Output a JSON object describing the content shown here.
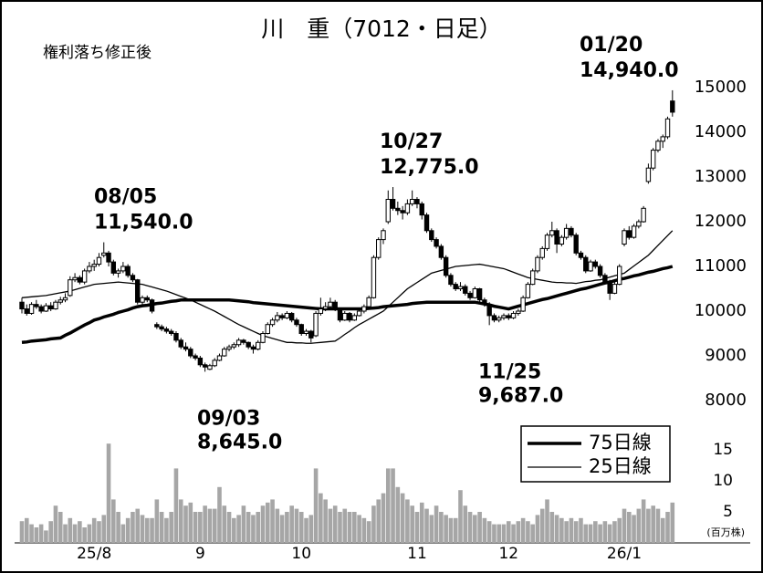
{
  "chart_data": {
    "type": "candlestick",
    "title": "川　重（7012・日足）",
    "subtitle": "権利落ち修正後",
    "categories": [
      null,
      null,
      null,
      null,
      null,
      null,
      null,
      null,
      null,
      null,
      null,
      null,
      null,
      null,
      null,
      "25/8",
      null,
      null,
      null,
      null,
      null,
      null,
      null,
      null,
      null,
      null,
      null,
      null,
      null,
      null,
      null,
      null,
      null,
      null,
      null,
      null,
      null,
      "9",
      null,
      null,
      null,
      null,
      null,
      null,
      null,
      null,
      null,
      null,
      null,
      null,
      null,
      null,
      null,
      null,
      null,
      null,
      null,
      null,
      "10",
      null,
      null,
      null,
      null,
      null,
      null,
      null,
      null,
      null,
      null,
      null,
      null,
      null,
      null,
      null,
      null,
      null,
      null,
      null,
      null,
      null,
      null,
      null,
      "11",
      null,
      null,
      null,
      null,
      null,
      null,
      null,
      null,
      null,
      null,
      null,
      null,
      null,
      null,
      null,
      null,
      null,
      null,
      "12",
      null,
      null,
      null,
      null,
      null,
      null,
      null,
      null,
      null,
      null,
      null,
      null,
      null,
      null,
      null,
      null,
      null,
      null,
      null,
      null,
      null,
      null,
      null,
      "26/1",
      null,
      null,
      null,
      null,
      null,
      null,
      null,
      null,
      null,
      null
    ],
    "candles": [
      [
        10200,
        10300,
        9950,
        10050
      ],
      [
        10050,
        10150,
        9900,
        9950
      ],
      [
        9950,
        10200,
        9920,
        10150
      ],
      [
        10150,
        10250,
        10050,
        10100
      ],
      [
        10100,
        10150,
        9950,
        10000
      ],
      [
        10000,
        10180,
        9980,
        10120
      ],
      [
        10120,
        10200,
        10000,
        10050
      ],
      [
        10050,
        10250,
        10030,
        10200
      ],
      [
        10200,
        10320,
        10150,
        10250
      ],
      [
        10250,
        10400,
        10200,
        10300
      ],
      [
        10350,
        10780,
        10320,
        10700
      ],
      [
        10700,
        10850,
        10650,
        10750
      ],
      [
        10750,
        10800,
        10600,
        10650
      ],
      [
        10650,
        10950,
        10600,
        10900
      ],
      [
        10900,
        11100,
        10850,
        11000
      ],
      [
        11000,
        11150,
        10900,
        11050
      ],
      [
        11050,
        11300,
        11000,
        11200
      ],
      [
        11250,
        11540,
        11200,
        11300
      ],
      [
        11300,
        11350,
        11000,
        11100
      ],
      [
        11100,
        11150,
        10800,
        10850
      ],
      [
        10850,
        10950,
        10750,
        10900
      ],
      [
        10900,
        11100,
        10850,
        11000
      ],
      [
        11000,
        11050,
        10750,
        10800
      ],
      [
        10800,
        10850,
        10650,
        10700
      ],
      [
        10700,
        10720,
        10150,
        10200
      ],
      [
        10200,
        10350,
        10150,
        10300
      ],
      [
        10300,
        10350,
        10200,
        10250
      ],
      [
        10250,
        10280,
        9950,
        10000
      ],
      [
        9700,
        9750,
        9600,
        9650
      ],
      [
        9650,
        9700,
        9550,
        9600
      ],
      [
        9600,
        9650,
        9500,
        9550
      ],
      [
        9550,
        9600,
        9450,
        9500
      ],
      [
        9500,
        9550,
        9300,
        9350
      ],
      [
        9350,
        9400,
        9150,
        9200
      ],
      [
        9200,
        9300,
        9100,
        9150
      ],
      [
        9150,
        9200,
        8950,
        9000
      ],
      [
        9000,
        9050,
        8900,
        8950
      ],
      [
        8950,
        9000,
        8750,
        8800
      ],
      [
        8800,
        8850,
        8645,
        8750
      ],
      [
        8700,
        8820,
        8680,
        8780
      ],
      [
        8780,
        8950,
        8750,
        8900
      ],
      [
        8900,
        9050,
        8880,
        9000
      ],
      [
        9000,
        9200,
        8980,
        9150
      ],
      [
        9150,
        9250,
        9100,
        9200
      ],
      [
        9200,
        9300,
        9150,
        9250
      ],
      [
        9250,
        9400,
        9200,
        9350
      ],
      [
        9350,
        9380,
        9250,
        9300
      ],
      [
        9300,
        9320,
        9150,
        9200
      ],
      [
        9200,
        9250,
        9050,
        9150
      ],
      [
        9150,
        9350,
        9120,
        9300
      ],
      [
        9300,
        9550,
        9280,
        9500
      ],
      [
        9500,
        9750,
        9480,
        9700
      ],
      [
        9700,
        9850,
        9650,
        9800
      ],
      [
        9800,
        9980,
        9750,
        9900
      ],
      [
        9900,
        9950,
        9800,
        9850
      ],
      [
        9850,
        10000,
        9820,
        9950
      ],
      [
        9950,
        9980,
        9750,
        9800
      ],
      [
        9800,
        9850,
        9650,
        9700
      ],
      [
        9700,
        9720,
        9450,
        9500
      ],
      [
        9500,
        9600,
        9450,
        9550
      ],
      [
        9550,
        9580,
        9300,
        9400
      ],
      [
        9450,
        10000,
        9420,
        9950
      ],
      [
        9950,
        10300,
        9900,
        10050
      ],
      [
        10050,
        10200,
        10000,
        10100
      ],
      [
        10100,
        10300,
        10050,
        10200
      ],
      [
        10200,
        10250,
        10000,
        10050
      ],
      [
        10050,
        10080,
        9750,
        9800
      ],
      [
        9800,
        10000,
        9780,
        9950
      ],
      [
        9950,
        9980,
        9750,
        9800
      ],
      [
        9800,
        9950,
        9780,
        9900
      ],
      [
        9900,
        10050,
        9880,
        10000
      ],
      [
        10000,
        10150,
        9950,
        10100
      ],
      [
        10100,
        10350,
        10050,
        10300
      ],
      [
        10300,
        11250,
        10280,
        11200
      ],
      [
        11200,
        11650,
        11150,
        11600
      ],
      [
        11600,
        11850,
        11500,
        11800
      ],
      [
        12000,
        12700,
        11950,
        12500
      ],
      [
        12500,
        12775,
        12250,
        12300
      ],
      [
        12300,
        12450,
        12150,
        12250
      ],
      [
        12250,
        12350,
        12050,
        12200
      ],
      [
        12200,
        12500,
        12150,
        12400
      ],
      [
        12400,
        12700,
        12350,
        12500
      ],
      [
        12500,
        12550,
        12300,
        12400
      ],
      [
        12400,
        12450,
        12050,
        12150
      ],
      [
        12150,
        12200,
        11750,
        11800
      ],
      [
        11800,
        11850,
        11550,
        11600
      ],
      [
        11600,
        11650,
        11400,
        11450
      ],
      [
        11450,
        11500,
        11150,
        11200
      ],
      [
        11200,
        11250,
        10750,
        10800
      ],
      [
        10800,
        10850,
        10550,
        10600
      ],
      [
        10600,
        10650,
        10450,
        10500
      ],
      [
        10500,
        10650,
        10450,
        10550
      ],
      [
        10550,
        10600,
        10350,
        10400
      ],
      [
        10400,
        10450,
        10250,
        10300
      ],
      [
        10300,
        10550,
        10280,
        10500
      ],
      [
        10500,
        10520,
        10200,
        10250
      ],
      [
        10250,
        10300,
        10100,
        10150
      ],
      [
        10150,
        10200,
        9687,
        9900
      ],
      [
        9900,
        9950,
        9750,
        9800
      ],
      [
        9800,
        9900,
        9750,
        9850
      ],
      [
        9850,
        9950,
        9800,
        9900
      ],
      [
        9900,
        9950,
        9800,
        9850
      ],
      [
        9850,
        10000,
        9820,
        9950
      ],
      [
        9950,
        10050,
        9900,
        10000
      ],
      [
        10000,
        10350,
        9980,
        10300
      ],
      [
        10300,
        10650,
        10280,
        10600
      ],
      [
        10600,
        10950,
        10580,
        10900
      ],
      [
        10900,
        11250,
        10850,
        11200
      ],
      [
        11200,
        11450,
        11150,
        11400
      ],
      [
        11400,
        11750,
        11350,
        11700
      ],
      [
        11700,
        12000,
        11650,
        11800
      ],
      [
        11800,
        11850,
        11300,
        11500
      ],
      [
        11500,
        11700,
        11450,
        11650
      ],
      [
        11650,
        11950,
        11600,
        11850
      ],
      [
        11850,
        11900,
        11650,
        11700
      ],
      [
        11700,
        11750,
        11250,
        11300
      ],
      [
        11300,
        11350,
        11150,
        11200
      ],
      [
        11200,
        11250,
        10850,
        10900
      ],
      [
        10900,
        11150,
        10880,
        11100
      ],
      [
        11100,
        11150,
        10950,
        11000
      ],
      [
        11000,
        11050,
        10750,
        10800
      ],
      [
        10800,
        10850,
        10600,
        10650
      ],
      [
        10650,
        10700,
        10250,
        10400
      ],
      [
        10400,
        10650,
        10380,
        10600
      ],
      [
        10600,
        11050,
        10580,
        11000
      ],
      [
        11500,
        11850,
        11450,
        11800
      ],
      [
        11800,
        11900,
        11600,
        11650
      ],
      [
        11650,
        11950,
        11620,
        11900
      ],
      [
        11900,
        12050,
        11850,
        12000
      ],
      [
        12000,
        12350,
        11980,
        12300
      ],
      [
        12900,
        13300,
        12850,
        13200
      ],
      [
        13200,
        13650,
        13150,
        13600
      ],
      [
        13600,
        13850,
        13550,
        13800
      ],
      [
        13800,
        13950,
        13650,
        13900
      ],
      [
        13900,
        14350,
        13850,
        14300
      ],
      [
        14700,
        14940,
        14350,
        14450
      ]
    ],
    "series": [
      {
        "name": "75日線",
        "color": "#000000",
        "values": [
          9300,
          9310,
          9330,
          9340,
          9350,
          9360,
          9380,
          9390,
          9400,
          9460,
          9510,
          9570,
          9630,
          9690,
          9740,
          9800,
          9830,
          9870,
          9900,
          9930,
          9970,
          10000,
          10030,
          10070,
          10100,
          10120,
          10130,
          10150,
          10170,
          10180,
          10200,
          10220,
          10230,
          10250,
          10250,
          10250,
          10250,
          10250,
          10250,
          10250,
          10250,
          10250,
          10250,
          10250,
          10240,
          10230,
          10220,
          10210,
          10190,
          10180,
          10170,
          10160,
          10150,
          10140,
          10130,
          10120,
          10110,
          10100,
          10090,
          10080,
          10070,
          10060,
          10050,
          10050,
          10050,
          10050,
          10050,
          10050,
          10050,
          10050,
          10050,
          10050,
          10060,
          10070,
          10080,
          10100,
          10110,
          10120,
          10130,
          10140,
          10150,
          10170,
          10180,
          10190,
          10200,
          10200,
          10200,
          10200,
          10200,
          10200,
          10200,
          10200,
          10200,
          10200,
          10200,
          10180,
          10160,
          10140,
          10110,
          10090,
          10070,
          10050,
          10080,
          10110,
          10140,
          10170,
          10200,
          10230,
          10260,
          10280,
          10310,
          10340,
          10370,
          10400,
          10430,
          10460,
          10490,
          10510,
          10540,
          10570,
          10600,
          10630,
          10650,
          10680,
          10710,
          10730,
          10760,
          10790,
          10810,
          10840,
          10870,
          10890,
          10920,
          10950,
          10970,
          11000
        ]
      },
      {
        "name": "25日線",
        "color": "#000000",
        "values": [
          10300,
          10310,
          10320,
          10330,
          10340,
          10350,
          10370,
          10390,
          10410,
          10430,
          10450,
          10480,
          10510,
          10540,
          10570,
          10600,
          10610,
          10620,
          10630,
          10640,
          10650,
          10640,
          10630,
          10620,
          10610,
          10600,
          10570,
          10540,
          10510,
          10480,
          10450,
          10410,
          10370,
          10330,
          10290,
          10250,
          10200,
          10150,
          10100,
          10050,
          10000,
          9940,
          9880,
          9820,
          9760,
          9700,
          9650,
          9600,
          9550,
          9500,
          9450,
          9420,
          9390,
          9360,
          9330,
          9300,
          9300,
          9290,
          9290,
          9280,
          9280,
          9290,
          9300,
          9310,
          9320,
          9330,
          9400,
          9480,
          9550,
          9630,
          9700,
          9760,
          9820,
          9880,
          9940,
          10000,
          10100,
          10200,
          10300,
          10400,
          10500,
          10570,
          10640,
          10710,
          10780,
          10850,
          10880,
          10910,
          10940,
          10970,
          11000,
          11010,
          11020,
          11030,
          11040,
          11050,
          11030,
          11010,
          10990,
          10970,
          10950,
          10910,
          10870,
          10830,
          10790,
          10750,
          10730,
          10710,
          10690,
          10670,
          10650,
          10640,
          10640,
          10630,
          10630,
          10620,
          10640,
          10660,
          10670,
          10690,
          10700,
          10730,
          10760,
          10790,
          10820,
          10850,
          10930,
          11010,
          11090,
          11170,
          11250,
          11360,
          11470,
          11580,
          11690,
          11800
        ]
      }
    ],
    "ylim": [
      8000,
      15000
    ],
    "yticks": [
      8000,
      9000,
      10000,
      11000,
      12000,
      13000,
      14000,
      15000
    ],
    "volume": {
      "unit": "(百万株)",
      "ylim": [
        0,
        15
      ],
      "yticks": [
        5,
        10,
        15
      ],
      "color": "#a6a6a6",
      "values": [
        3.5,
        4,
        3,
        2.5,
        3,
        2,
        3.5,
        6,
        5,
        3,
        4,
        3,
        3.5,
        2.5,
        3,
        4,
        3.5,
        4.5,
        16,
        7,
        5,
        3,
        4,
        5,
        5.5,
        4.5,
        4,
        4,
        7,
        5,
        4,
        5,
        12,
        7,
        6,
        6.5,
        5,
        5,
        6,
        5.5,
        5.5,
        9,
        6,
        5,
        4,
        4.5,
        6,
        5,
        4.5,
        5,
        6,
        6.5,
        7,
        5.5,
        4.5,
        5,
        6,
        5.5,
        5,
        4,
        4.5,
        12,
        8,
        7,
        5.5,
        6,
        5,
        5.5,
        5,
        5,
        4.5,
        4,
        3.5,
        6,
        7,
        8,
        12,
        12,
        9,
        8,
        7,
        6,
        5,
        6.5,
        5.5,
        4.5,
        6,
        5,
        4.5,
        4,
        4,
        8.5,
        6,
        5,
        4.5,
        5,
        4,
        3.5,
        3,
        3,
        3,
        3.5,
        3,
        3.5,
        4,
        3.5,
        3,
        4.5,
        5.5,
        7,
        5,
        4.5,
        4,
        3.5,
        4,
        3.5,
        4,
        3,
        3,
        3.5,
        3,
        3.5,
        3,
        3.5,
        4,
        5.5,
        5,
        4.5,
        5.5,
        7,
        5.5,
        6,
        5.5,
        4,
        5,
        6.5
      ]
    },
    "annotations": [
      {
        "date": "08/05",
        "value": 11540,
        "label": "11,540.0"
      },
      {
        "date": "09/03",
        "value": 8645,
        "label": "8,645.0"
      },
      {
        "date": "10/27",
        "value": 12775,
        "label": "12,775.0"
      },
      {
        "date": "11/25",
        "value": 9687,
        "label": "9,687.0"
      },
      {
        "date": "01/20",
        "value": 14940,
        "label": "14,940.0"
      }
    ]
  }
}
